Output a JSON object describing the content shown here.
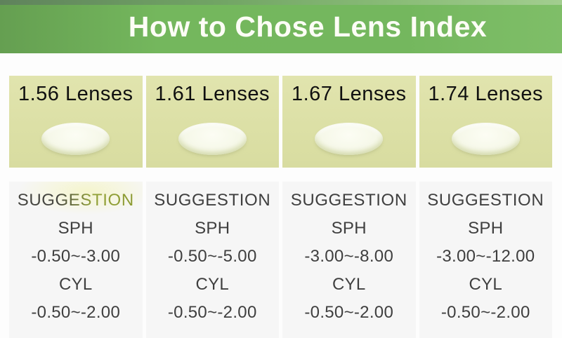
{
  "header": {
    "title": "How to Chose Lens Index"
  },
  "columns": [
    {
      "title": "1.56 Lenses",
      "suggestion": "SUGGESTION",
      "sph_label": "SPH",
      "sph_value": "-0.50~-3.00",
      "cyl_label": "CYL",
      "cyl_value": "-0.50~-2.00"
    },
    {
      "title": "1.61 Lenses",
      "suggestion": "SUGGESTION",
      "sph_label": "SPH",
      "sph_value": "-0.50~-5.00",
      "cyl_label": "CYL",
      "cyl_value": "-0.50~-2.00"
    },
    {
      "title": "1.67 Lenses",
      "suggestion": "SUGGESTION",
      "sph_label": "SPH",
      "sph_value": "-3.00~-8.00",
      "cyl_label": "CYL",
      "cyl_value": "-0.50~-2.00"
    },
    {
      "title": "1.74 Lenses",
      "suggestion": "SUGGESTION",
      "sph_label": "SPH",
      "sph_value": "-3.00~-12.00",
      "cyl_label": "CYL",
      "cyl_value": "-0.50~-2.00"
    }
  ],
  "colors": {
    "banner_green": "#74b75d",
    "banner_top_strip_left": "#5e7d5e",
    "banner_top_strip_right": "#a8d096",
    "lens_card_yellow": "#dce0a6",
    "suggestion_panel_gray": "#f6f6f6",
    "text_dark_gray": "#3f3f3f",
    "accent_olive": "#8f9e36"
  }
}
